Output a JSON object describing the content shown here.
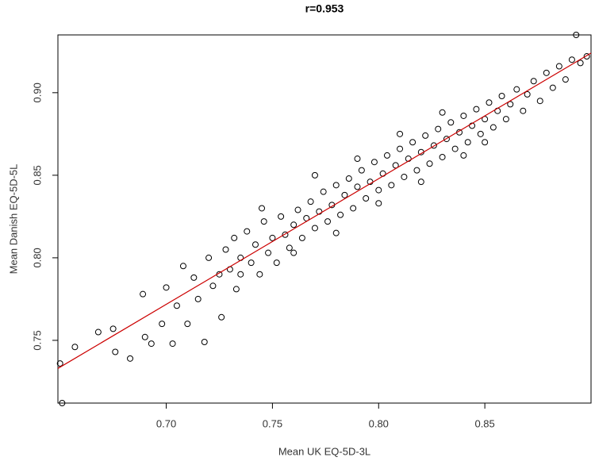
{
  "chart_data": {
    "type": "scatter",
    "title": "r=0.953",
    "x_label": "Mean UK EQ-5D-3L",
    "y_label": "Mean Danish EQ-5D-5L",
    "xlim": [
      0.649,
      0.9
    ],
    "ylim": [
      0.712,
      0.935
    ],
    "xticks": [
      {
        "value": 0.7,
        "label": "0.70"
      },
      0.75,
      {
        "value": 0.8,
        "label": "0.80"
      },
      0.85
    ],
    "yticks": [
      0.75,
      {
        "value": 0.8,
        "label": "0.80"
      },
      0.85,
      {
        "value": 0.9,
        "label": "0.90"
      }
    ],
    "color": "#000000",
    "x": [
      0.65,
      0.651,
      0.657,
      0.668,
      0.675,
      0.676,
      0.683,
      0.689,
      0.69,
      0.693,
      0.698,
      0.7,
      0.703,
      0.705,
      0.708,
      0.71,
      0.713,
      0.715,
      0.718,
      0.72,
      0.722,
      0.725,
      0.726,
      0.728,
      0.73,
      0.732,
      0.733,
      0.735,
      0.738,
      0.74,
      0.742,
      0.744,
      0.746,
      0.748,
      0.75,
      0.752,
      0.754,
      0.756,
      0.758,
      0.76,
      0.762,
      0.764,
      0.766,
      0.768,
      0.77,
      0.772,
      0.774,
      0.776,
      0.778,
      0.78,
      0.782,
      0.784,
      0.786,
      0.788,
      0.79,
      0.792,
      0.794,
      0.796,
      0.798,
      0.8,
      0.802,
      0.804,
      0.806,
      0.808,
      0.81,
      0.812,
      0.814,
      0.816,
      0.818,
      0.82,
      0.822,
      0.824,
      0.826,
      0.828,
      0.83,
      0.832,
      0.834,
      0.836,
      0.838,
      0.84,
      0.842,
      0.844,
      0.846,
      0.848,
      0.85,
      0.852,
      0.854,
      0.856,
      0.858,
      0.86,
      0.862,
      0.865,
      0.868,
      0.87,
      0.873,
      0.876,
      0.879,
      0.882,
      0.885,
      0.888,
      0.891,
      0.893,
      0.895,
      0.898,
      0.76,
      0.78,
      0.8,
      0.82,
      0.79,
      0.81,
      0.77,
      0.83,
      0.84,
      0.85,
      0.745,
      0.735
    ],
    "y": [
      0.736,
      0.712,
      0.746,
      0.755,
      0.757,
      0.743,
      0.739,
      0.778,
      0.752,
      0.748,
      0.76,
      0.782,
      0.748,
      0.771,
      0.795,
      0.76,
      0.788,
      0.775,
      0.749,
      0.8,
      0.783,
      0.79,
      0.764,
      0.805,
      0.793,
      0.812,
      0.781,
      0.8,
      0.816,
      0.797,
      0.808,
      0.79,
      0.822,
      0.803,
      0.812,
      0.797,
      0.825,
      0.814,
      0.806,
      0.82,
      0.829,
      0.812,
      0.824,
      0.834,
      0.818,
      0.828,
      0.84,
      0.822,
      0.832,
      0.844,
      0.826,
      0.838,
      0.848,
      0.83,
      0.843,
      0.853,
      0.836,
      0.846,
      0.858,
      0.841,
      0.851,
      0.862,
      0.844,
      0.856,
      0.866,
      0.849,
      0.86,
      0.87,
      0.853,
      0.864,
      0.874,
      0.857,
      0.868,
      0.878,
      0.861,
      0.872,
      0.882,
      0.866,
      0.876,
      0.886,
      0.87,
      0.88,
      0.89,
      0.875,
      0.884,
      0.894,
      0.879,
      0.889,
      0.898,
      0.884,
      0.893,
      0.902,
      0.889,
      0.899,
      0.907,
      0.895,
      0.912,
      0.903,
      0.916,
      0.908,
      0.92,
      0.935,
      0.918,
      0.922,
      0.803,
      0.815,
      0.833,
      0.846,
      0.86,
      0.875,
      0.85,
      0.888,
      0.862,
      0.87,
      0.83,
      0.79
    ],
    "fit_line": {
      "color": "#cc0000",
      "x": [
        0.649,
        0.9
      ],
      "y": [
        0.733,
        0.924
      ]
    }
  }
}
